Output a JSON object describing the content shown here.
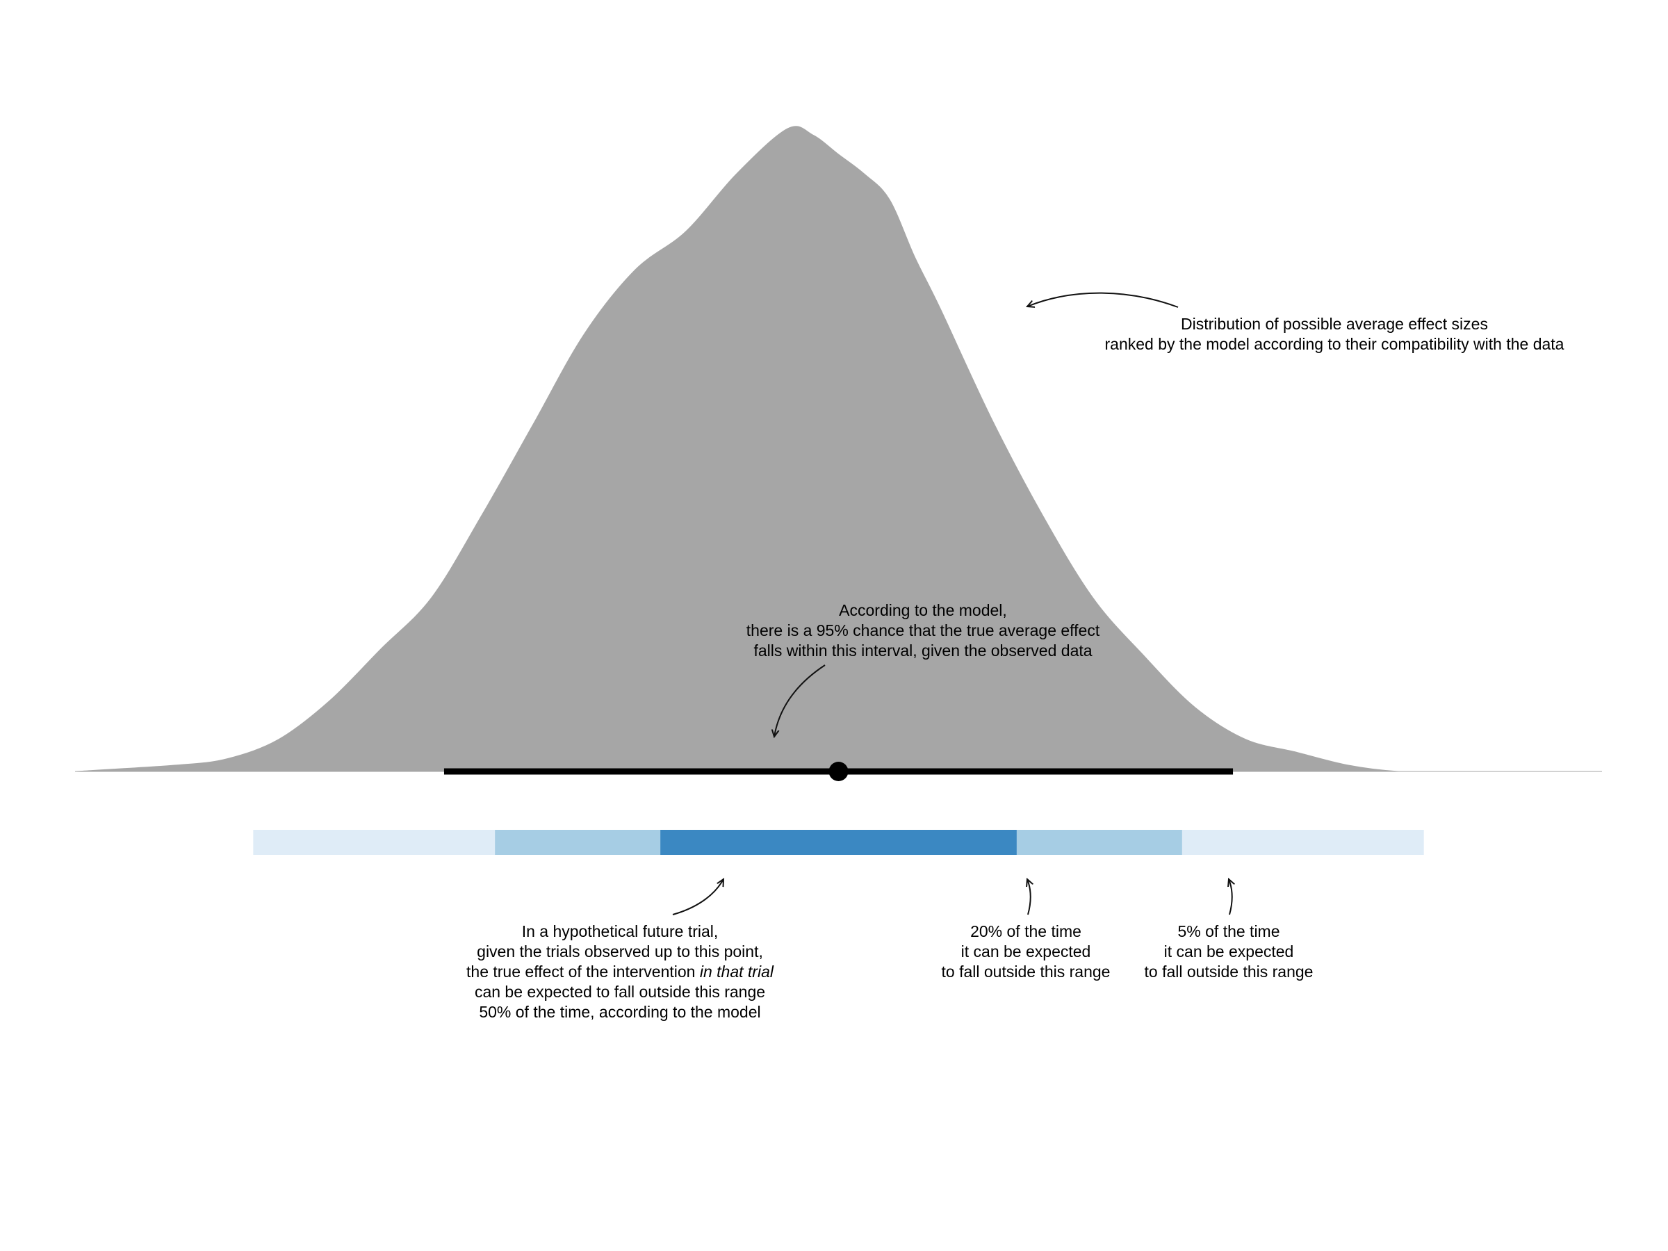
{
  "chart_data": {
    "type": "area",
    "title": "",
    "xlabel": "",
    "ylabel": "",
    "xlim": [
      -3.0,
      3.0
    ],
    "ylim": [
      0,
      1.0
    ],
    "grid": false,
    "density": {
      "color": "#a6a6a6",
      "x": [
        -3.0,
        -2.6,
        -2.4,
        -2.2,
        -2.0,
        -1.8,
        -1.6,
        -1.4,
        -1.2,
        -1.0,
        -0.8,
        -0.6,
        -0.4,
        -0.2,
        -0.1,
        0.0,
        0.1,
        0.2,
        0.3,
        0.4,
        0.6,
        0.8,
        1.0,
        1.2,
        1.4,
        1.6,
        1.8,
        2.0,
        2.2,
        2.4,
        2.6,
        3.0
      ],
      "y": [
        0.0,
        0.01,
        0.02,
        0.05,
        0.11,
        0.19,
        0.27,
        0.4,
        0.54,
        0.68,
        0.78,
        0.84,
        0.93,
        1.0,
        0.99,
        0.96,
        0.93,
        0.89,
        0.8,
        0.72,
        0.55,
        0.4,
        0.27,
        0.18,
        0.1,
        0.05,
        0.03,
        0.01,
        0.0,
        0.0,
        0.0,
        0.0
      ]
    },
    "point_estimate": {
      "x": 0.0,
      "color": "#000000"
    },
    "credible_interval": {
      "level": "95%",
      "range": [
        -1.55,
        1.55
      ],
      "color": "#000000"
    },
    "prediction_bands": [
      {
        "level": "95%",
        "range": [
          -2.3,
          2.3
        ],
        "color": "#dfecf7"
      },
      {
        "level": "80%",
        "range": [
          -1.35,
          1.35
        ],
        "color": "#a6cde4"
      },
      {
        "level": "50%",
        "range": [
          -0.7,
          0.7
        ],
        "color": "#3b88c2"
      }
    ]
  },
  "annotations": {
    "distribution": {
      "lines": [
        "Distribution of possible average effect sizes",
        "ranked by the model according to their compatibility with the data"
      ]
    },
    "interval": {
      "lines": [
        "According to the model,",
        "there is a 95% chance that the true average effect",
        "falls within this interval, given the observed data"
      ]
    },
    "band50": {
      "line1": "In a hypothetical future trial,",
      "line2": "given the trials observed up to this point,",
      "line3_prefix": "the true effect of the intervention ",
      "line3_italic": "in that trial",
      "line4": "can be expected to fall outside this range",
      "line5": "50% of the time, according to the model"
    },
    "band80": {
      "lines": [
        "20% of the time",
        "it can be expected",
        "to fall outside this range"
      ]
    },
    "band95": {
      "lines": [
        "5% of the time",
        "it can be expected",
        "to fall outside this range"
      ]
    }
  }
}
